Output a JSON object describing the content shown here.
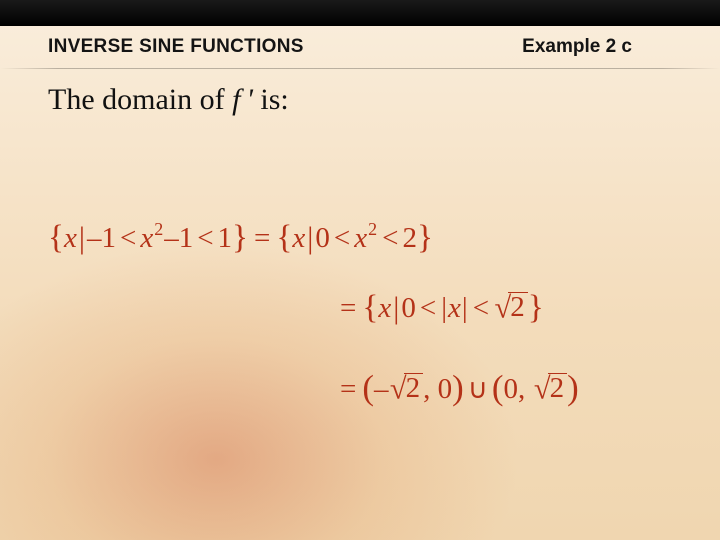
{
  "header": {
    "section_title": "INVERSE SINE FUNCTIONS",
    "example_label": "Example 2 c"
  },
  "body": {
    "intro_prefix": "The domain of ",
    "intro_var": "f '",
    "intro_suffix": " is:"
  },
  "math": {
    "line1_lhs_open": "{",
    "line1_lhs_var": "x",
    "line1_bar": "|",
    "line1_lhs_expr_a": "–1",
    "line1_lt": "<",
    "line1_lhs_expr_b_base": "x",
    "line1_lhs_expr_b_sup": "2",
    "line1_lhs_expr_c": "–1",
    "line1_lhs_expr_d": "1",
    "line1_close": "}",
    "line1_eq": "=",
    "line1_rhs_var": "x",
    "line1_rhs_a": "0",
    "line1_rhs_b_base": "x",
    "line1_rhs_b_sup": "2",
    "line1_rhs_c": "2",
    "line2_eq": "=",
    "line2_open": "{",
    "line2_var": "x",
    "line2_bar": "|",
    "line2_a": "0",
    "line2_lt": "<",
    "line2_abs": "|",
    "line2_absvar": "x",
    "line2_surd": "√",
    "line2_rad": "2",
    "line2_close": "}",
    "line3_eq": "=",
    "line3_po": "(",
    "line3_neg": "–",
    "line3_surd": "√",
    "line3_rad": "2",
    "line3_comma": ", 0",
    "line3_pc": ")",
    "line3_cup": "∪",
    "line3_b_po": "(",
    "line3_b_a": "0, ",
    "line3_b_surd": "√",
    "line3_b_rad": "2",
    "line3_b_pc": ")"
  },
  "style": {
    "math_color": "#b43218",
    "bg_top": "#faeedd",
    "bg_bottom": "#f0d6b0",
    "text_color": "#111111"
  }
}
